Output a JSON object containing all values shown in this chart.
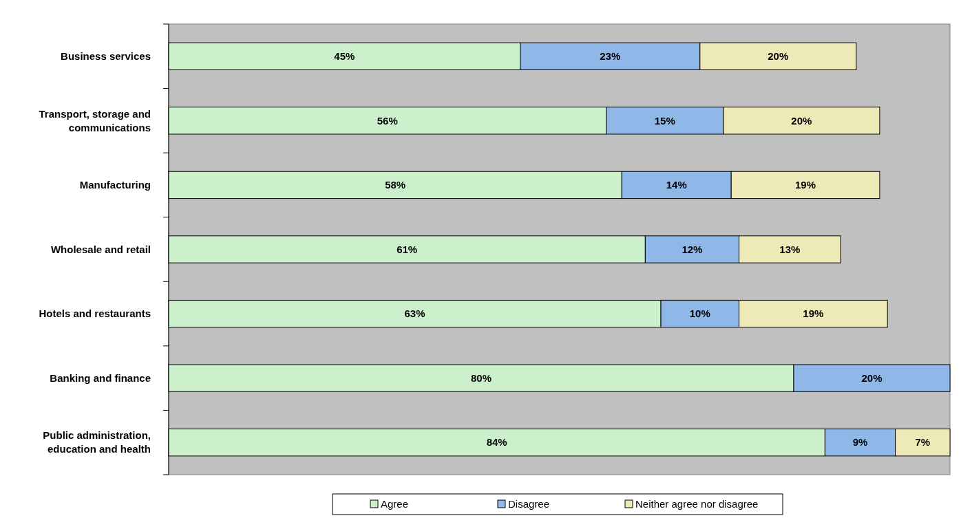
{
  "chart_data": {
    "type": "bar",
    "orientation": "horizontal",
    "stacked": true,
    "legend": "bottom",
    "grid": false,
    "categories": [
      "Business services",
      "Transport, storage and communications",
      "Manufacturing",
      "Wholesale and retail",
      "Hotels and restaurants",
      "Banking and finance",
      "Public administration, education and health"
    ],
    "series": [
      {
        "name": "Agree",
        "color": "#ccf0cc",
        "values": [
          45,
          56,
          58,
          61,
          63,
          80,
          84
        ],
        "value_labels": [
          "45%",
          "56%",
          "58%",
          "61%",
          "63%",
          "80%",
          "84%"
        ]
      },
      {
        "name": "Disagree",
        "color": "#8fb8e8",
        "values": [
          23,
          15,
          14,
          12,
          10,
          20,
          9
        ],
        "value_labels": [
          "23%",
          "15%",
          "14%",
          "12%",
          "10%",
          "20%",
          "9%"
        ]
      },
      {
        "name": "Neither agree nor disagree",
        "color": "#eeeab8",
        "values": [
          20,
          20,
          19,
          13,
          19,
          null,
          7
        ],
        "value_labels": [
          "20%",
          "20%",
          "19%",
          "13%",
          "19%",
          null,
          "7%"
        ]
      }
    ]
  }
}
